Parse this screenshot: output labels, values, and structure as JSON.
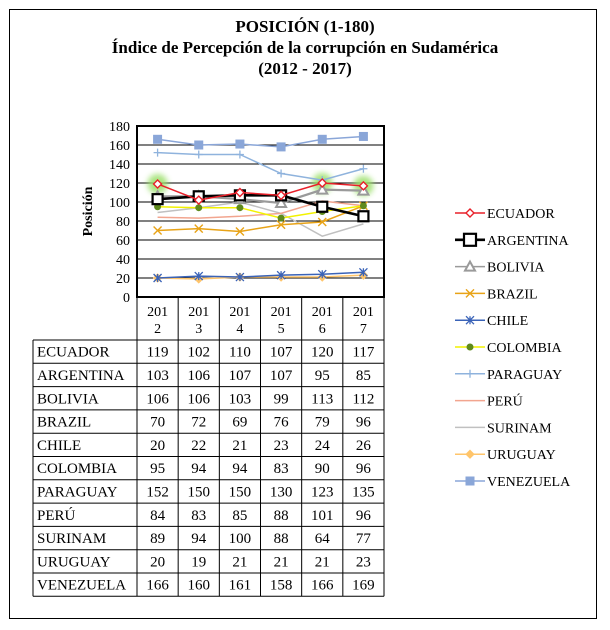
{
  "chart_data": {
    "type": "line",
    "title_lines": [
      "POSICIÓN (1-180)",
      "Índice de Percepción de la corrupción en Sudamérica",
      "(2012 - 2017)"
    ],
    "ylabel": "Posición",
    "xlabel": "",
    "ylim": [
      0,
      180
    ],
    "yticks": [
      0,
      20,
      40,
      60,
      80,
      100,
      120,
      140,
      160,
      180
    ],
    "grid": true,
    "legend_position": "right",
    "categories": [
      [
        "201",
        "2"
      ],
      [
        "201",
        "3"
      ],
      [
        "201",
        "4"
      ],
      [
        "201",
        "5"
      ],
      [
        "201",
        "6"
      ],
      [
        "201",
        "7"
      ]
    ],
    "series": [
      {
        "name": "ECUADOR",
        "values": [
          119,
          102,
          110,
          107,
          120,
          117
        ],
        "color": "#e8202a",
        "marker": "diamond-open"
      },
      {
        "name": "ARGENTINA",
        "values": [
          103,
          106,
          107,
          107,
          95,
          85
        ],
        "color": "#000000",
        "marker": "square-open"
      },
      {
        "name": "BOLIVIA",
        "values": [
          106,
          106,
          103,
          99,
          113,
          112
        ],
        "color": "#9a9a9a",
        "marker": "triangle"
      },
      {
        "name": "BRAZIL",
        "values": [
          70,
          72,
          69,
          76,
          79,
          96
        ],
        "color": "#e8a317",
        "marker": "x"
      },
      {
        "name": "CHILE",
        "values": [
          20,
          22,
          21,
          23,
          24,
          26
        ],
        "color": "#3a63b8",
        "marker": "star"
      },
      {
        "name": "COLOMBIA",
        "values": [
          95,
          94,
          94,
          83,
          90,
          96
        ],
        "color": "#f2f200",
        "marker": "dot"
      },
      {
        "name": "PARAGUAY",
        "values": [
          152,
          150,
          150,
          130,
          123,
          135
        ],
        "color": "#8fb3dd",
        "marker": "plus"
      },
      {
        "name": "PERÚ",
        "values": [
          84,
          83,
          85,
          88,
          101,
          96
        ],
        "color": "#f2a58f",
        "marker": "none"
      },
      {
        "name": "SURINAM",
        "values": [
          89,
          94,
          100,
          88,
          64,
          77
        ],
        "color": "#c0c0c0",
        "marker": "none"
      },
      {
        "name": "URUGUAY",
        "values": [
          20,
          19,
          21,
          21,
          21,
          23
        ],
        "color": "#ffc56b",
        "marker": "diamond"
      },
      {
        "name": "VENEZUELA",
        "values": [
          166,
          160,
          161,
          158,
          166,
          169
        ],
        "color": "#8aa6d8",
        "marker": "square"
      }
    ]
  }
}
